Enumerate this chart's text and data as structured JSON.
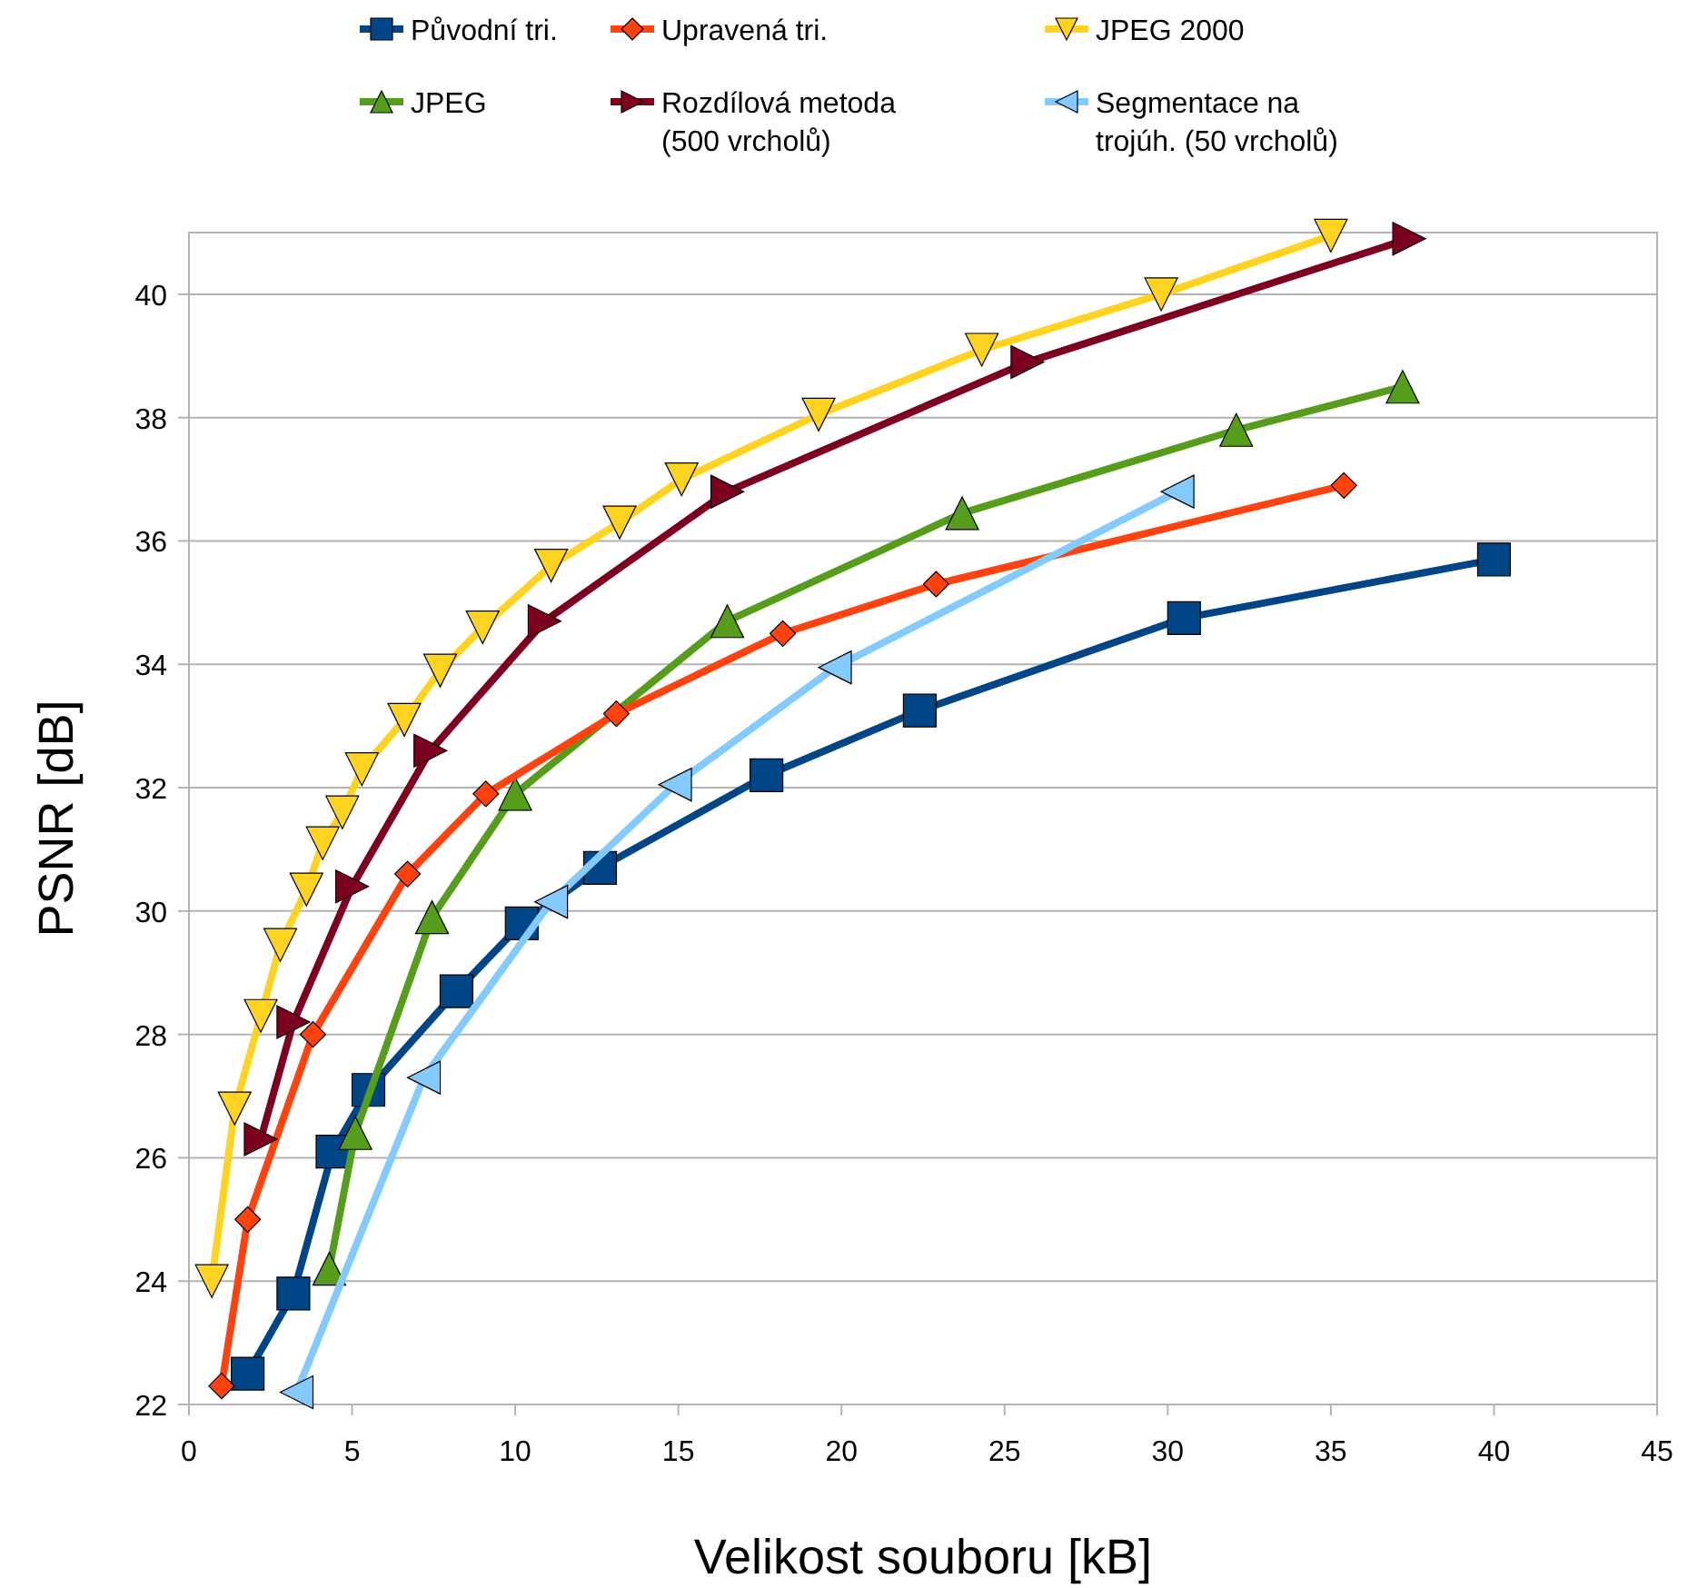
{
  "chart_data": {
    "type": "line",
    "xlabel": "Velikost souboru [kB]",
    "ylabel": "PSNR [dB]",
    "xlim": [
      0,
      45
    ],
    "xticks": [
      0,
      5,
      10,
      15,
      20,
      25,
      30,
      35,
      40,
      45
    ],
    "ylim": [
      22,
      41
    ],
    "yticks": [
      22,
      24,
      26,
      28,
      30,
      32,
      34,
      36,
      38,
      40
    ],
    "grid": "y",
    "legend": "top",
    "line_style": "solid",
    "series": [
      {
        "name": "Původní tri.",
        "color": "#004586",
        "marker": "square",
        "x": [
          1.8,
          3.2,
          4.4,
          5.5,
          8.2,
          10.2,
          12.6,
          17.7,
          22.4,
          30.5,
          40.0
        ],
        "values": [
          22.5,
          23.8,
          26.1,
          27.1,
          28.7,
          29.8,
          30.7,
          32.2,
          33.25,
          34.75,
          35.7
        ]
      },
      {
        "name": "JPEG",
        "color": "#579d1c",
        "marker": "triangle",
        "x": [
          4.3,
          5.1,
          7.45,
          10.0,
          16.5,
          23.7,
          32.1,
          37.2
        ],
        "values": [
          24.2,
          26.4,
          29.9,
          31.9,
          34.7,
          36.45,
          37.8,
          38.5
        ]
      },
      {
        "name": "Upravená tri.",
        "color": "#ff420e",
        "marker": "diamond",
        "x": [
          1.0,
          1.8,
          3.8,
          6.7,
          9.1,
          13.1,
          18.2,
          22.9,
          35.4
        ],
        "values": [
          22.3,
          25.0,
          28.0,
          30.6,
          31.9,
          33.2,
          34.5,
          35.3,
          36.9
        ]
      },
      {
        "name": "Rozdílová metoda (500 vrcholů)",
        "color": "#7e0021",
        "marker": "triangle-right",
        "x": [
          2.2,
          3.2,
          5.0,
          7.4,
          10.9,
          16.5,
          25.7,
          37.4
        ],
        "values": [
          26.3,
          28.2,
          30.4,
          32.6,
          34.7,
          36.8,
          38.9,
          40.9
        ]
      },
      {
        "name": "JPEG 2000",
        "color": "#ffd320",
        "marker": "triangle-down",
        "x": [
          0.7,
          1.4,
          2.2,
          2.8,
          3.6,
          4.1,
          4.7,
          5.3,
          6.6,
          7.7,
          9.0,
          11.1,
          13.2,
          15.1,
          19.3,
          24.3,
          29.8,
          35.0
        ],
        "values": [
          24.0,
          26.8,
          28.3,
          29.45,
          30.35,
          31.1,
          31.6,
          32.3,
          33.1,
          33.9,
          34.6,
          35.6,
          36.3,
          37.0,
          38.05,
          39.1,
          40.0,
          40.95
        ]
      },
      {
        "name": "Segmentace na trojúh. (50 vrcholů)",
        "color": "#83caff",
        "marker": "triangle-left",
        "x": [
          3.3,
          7.2,
          11.1,
          14.9,
          19.8,
          30.3
        ],
        "values": [
          22.2,
          27.3,
          30.15,
          32.05,
          33.95,
          36.8
        ]
      }
    ]
  }
}
